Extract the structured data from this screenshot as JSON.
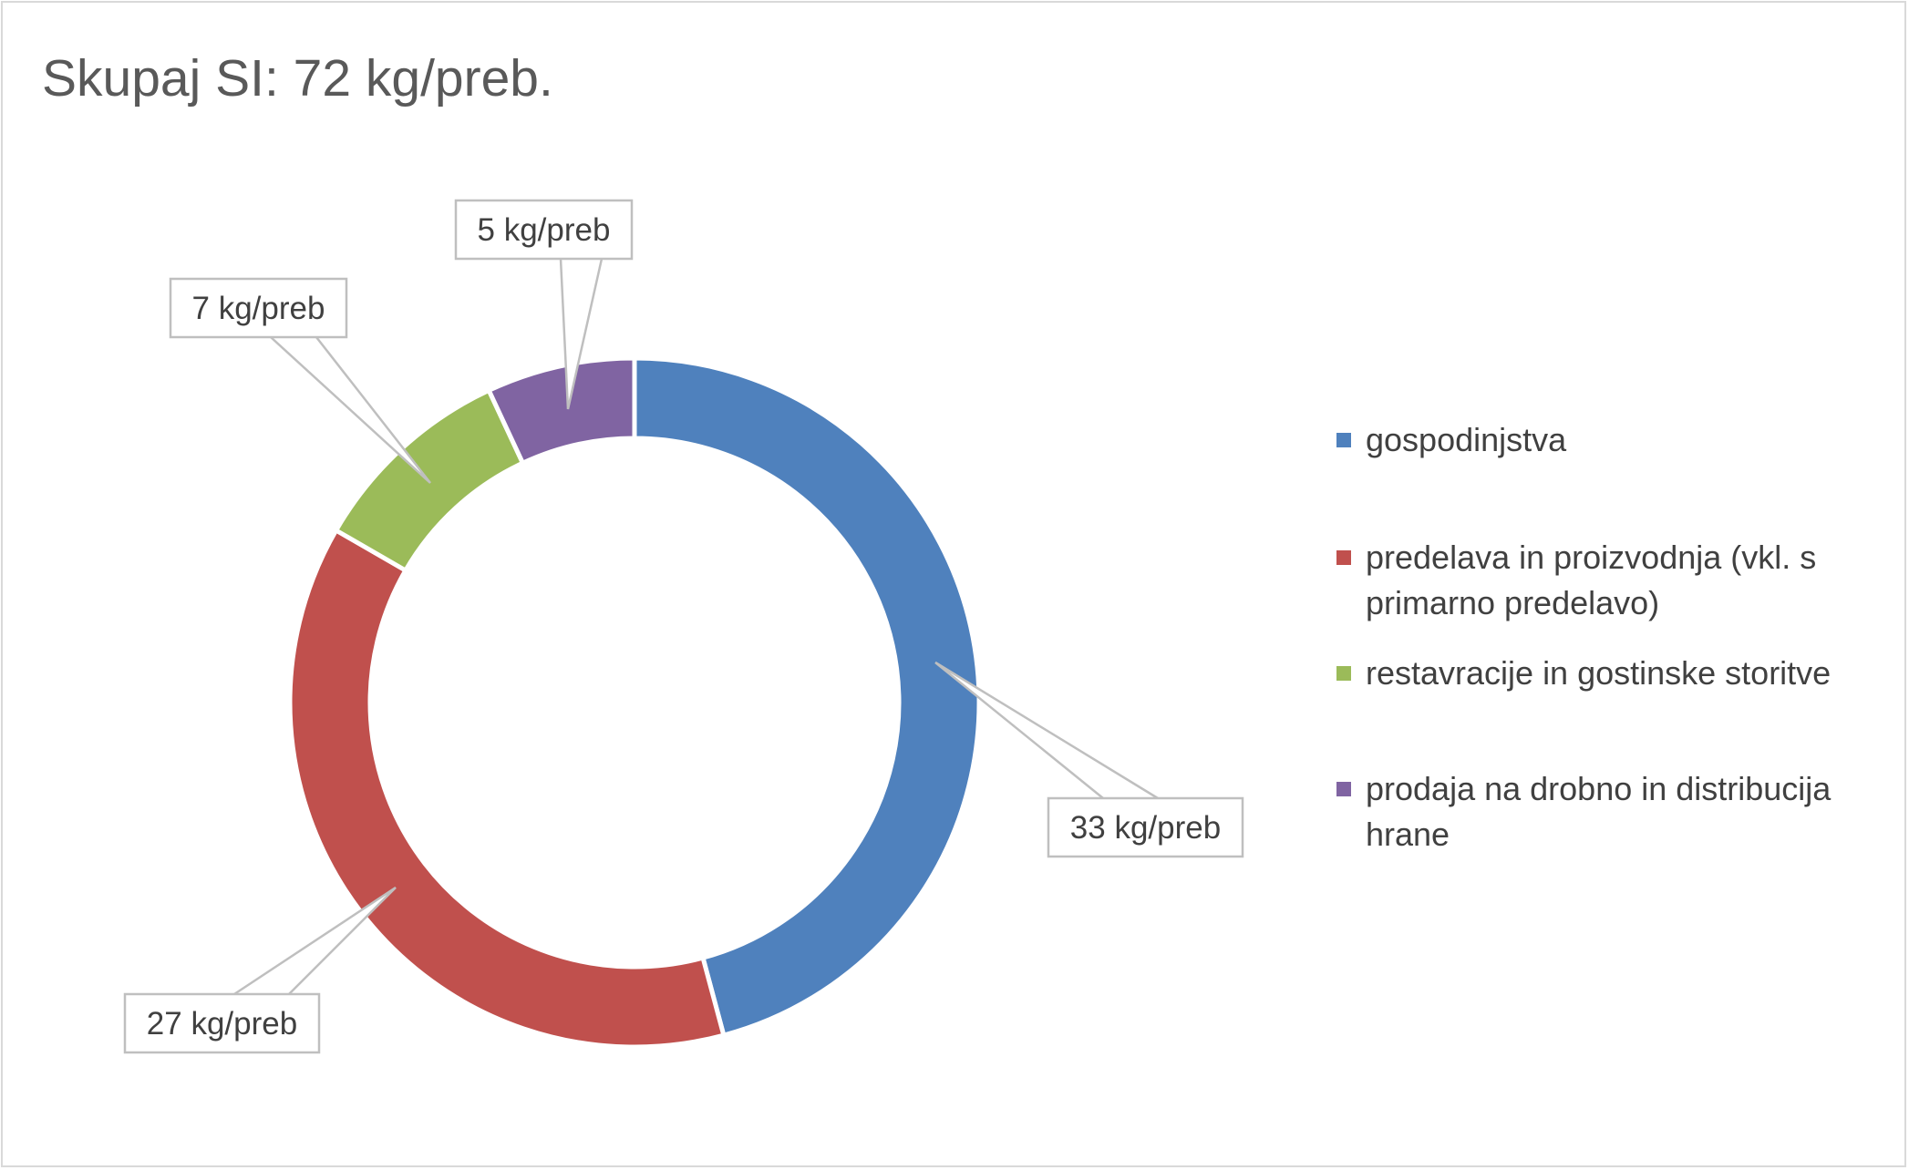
{
  "chart_data": {
    "type": "donut",
    "title": "Skupaj SI: 72 kg/preb.",
    "unit": "kg/preb",
    "categories": [
      "gospodinjstva",
      "predelava in proizvodnja (vkl. s primarno predelavo)",
      "restavracije in gostinske storitve",
      "prodaja na drobno in distribucija hrane"
    ],
    "values": [
      33,
      27,
      7,
      5
    ],
    "data_labels": [
      "33 kg/preb",
      "27 kg/preb",
      "7 kg/preb",
      "5 kg/preb"
    ],
    "colors": [
      "#4f81bd",
      "#c0504d",
      "#9bbb59",
      "#8064a2"
    ],
    "legend_position": "right"
  }
}
